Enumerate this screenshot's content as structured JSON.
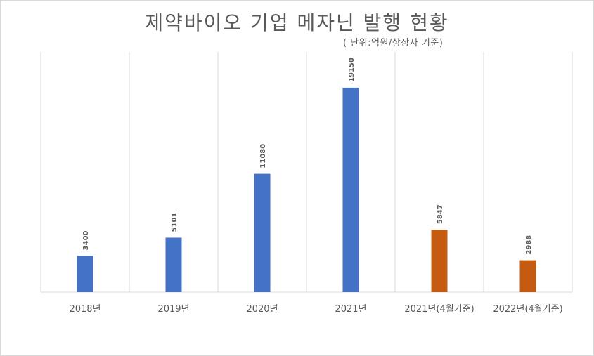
{
  "chart_data": {
    "type": "bar",
    "title": "제약바이오 기업 메자닌 발행 현황",
    "subtitle": "( 단위:억원/상장사 기준)",
    "categories": [
      "2018년",
      "2019년",
      "2020년",
      "2021년",
      "2021년(4월기준)",
      "2022년(4월기준)"
    ],
    "values": [
      3400,
      5101,
      11080,
      19150,
      5847,
      2988
    ],
    "bar_colors": [
      "#4472c4",
      "#4472c4",
      "#4472c4",
      "#4472c4",
      "#c55a11",
      "#c55a11"
    ],
    "ylim": [
      0,
      22500
    ],
    "grid": "vertical",
    "legend": "none",
    "colors": {
      "blue": "#4472c4",
      "orange": "#c55a11",
      "text": "#595959",
      "grid": "#d9d9d9"
    }
  }
}
